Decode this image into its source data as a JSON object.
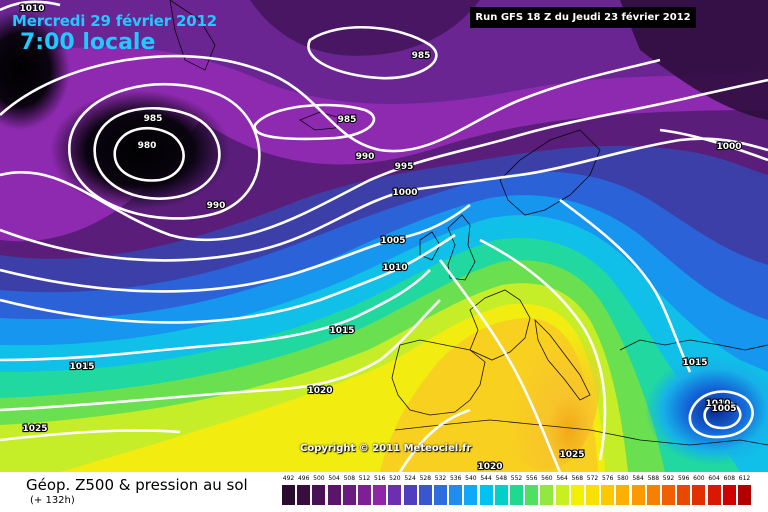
{
  "header": {
    "date": "Mercredi 29 février 2012",
    "time": "7:00 locale",
    "run": "Run GFS 18 Z du Jeudi 23 février 2012"
  },
  "copyright": "Copyright © 2011 Meteociel.fr",
  "footer": {
    "title": "Géop. Z500 & pression au sol",
    "lead": "(+ 132h)"
  },
  "legend": {
    "values": [
      "492",
      "496",
      "500",
      "504",
      "508",
      "512",
      "516",
      "520",
      "524",
      "528",
      "532",
      "536",
      "540",
      "544",
      "548",
      "552",
      "556",
      "560",
      "564",
      "568",
      "572",
      "576",
      "580",
      "584",
      "588",
      "592",
      "596",
      "600",
      "604",
      "608",
      "612"
    ],
    "colors": [
      "#2a0a2e",
      "#3a0d40",
      "#4a1055",
      "#5a146a",
      "#6b1a80",
      "#7d2095",
      "#8e26a8",
      "#6b2fb0",
      "#4f3fc0",
      "#3a55d0",
      "#2c6ee0",
      "#1f8cf0",
      "#10a8f8",
      "#00c2f0",
      "#00d0c8",
      "#20d890",
      "#50e060",
      "#90e840",
      "#c8f020",
      "#f0f000",
      "#f8e000",
      "#fcc800",
      "#fcb000",
      "#fc9800",
      "#f88000",
      "#f06000",
      "#e84800",
      "#e03000",
      "#d81800",
      "#d00000",
      "#b00000"
    ]
  },
  "isobars": [
    {
      "value": "1010",
      "label": "1010"
    },
    {
      "value": "985",
      "label": "985"
    },
    {
      "value": "980",
      "label": "980"
    },
    {
      "value": "985",
      "label": "985"
    },
    {
      "value": "990",
      "label": "990"
    },
    {
      "value": "985",
      "label": "985"
    },
    {
      "value": "990",
      "label": "990"
    },
    {
      "value": "995",
      "label": "995"
    },
    {
      "value": "1000",
      "label": "1000"
    },
    {
      "value": "1000",
      "label": "1000"
    },
    {
      "value": "1005",
      "label": "1005"
    },
    {
      "value": "1010",
      "label": "1010"
    },
    {
      "value": "1015",
      "label": "1015"
    },
    {
      "value": "1015",
      "label": "1015"
    },
    {
      "value": "1020",
      "label": "1020"
    },
    {
      "value": "1025",
      "label": "1025"
    },
    {
      "value": "1015",
      "label": "1015"
    },
    {
      "value": "1010",
      "label": "1010"
    },
    {
      "value": "1005",
      "label": "1005"
    },
    {
      "value": "1020",
      "label": "1020"
    },
    {
      "value": "1025",
      "label": "1025"
    }
  ]
}
